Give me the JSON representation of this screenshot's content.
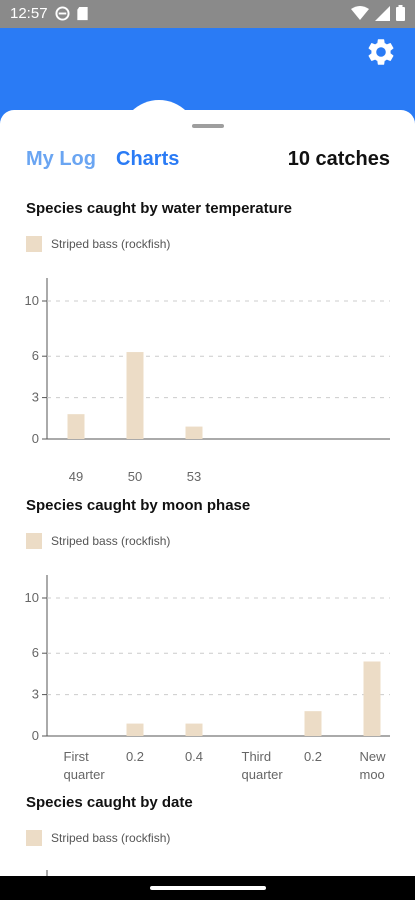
{
  "status": {
    "time": "12:57",
    "icons": [
      "vpn-icon",
      "sd-card-icon",
      "wifi-icon",
      "signal-icon",
      "battery-icon"
    ]
  },
  "header": {
    "settings_icon": "gear-icon",
    "background": "#2a7bf5"
  },
  "tabs": [
    {
      "label": "My Log",
      "active": false
    },
    {
      "label": "Charts",
      "active": true
    }
  ],
  "catch_count": "10 catches",
  "charts": [
    {
      "title": "Species caught by water temperature",
      "legend": "Striped bass (rockfish)",
      "chart_data": {
        "type": "bar",
        "categories": [
          "49",
          "50",
          "53"
        ],
        "series": [
          {
            "name": "Striped bass (rockfish)",
            "values": [
              1.8,
              6.3,
              0.9
            ]
          }
        ],
        "yticks": [
          "0",
          "3",
          "6",
          "10"
        ],
        "color": "#ecdcc6"
      }
    },
    {
      "title": "Species caught by moon phase",
      "legend": "Striped bass (rockfish)",
      "chart_data": {
        "type": "bar",
        "categories": [
          "First quarter",
          "0.2",
          "0.4",
          "Third quarter",
          "0.2",
          "New moo"
        ],
        "series": [
          {
            "name": "Striped bass (rockfish)",
            "values": [
              0,
              0.9,
              0.9,
              0,
              1.8,
              5.4
            ]
          }
        ],
        "yticks": [
          "0",
          "3",
          "6",
          "10"
        ],
        "color": "#ecdcc6"
      }
    },
    {
      "title": "Species caught by date",
      "legend": "Striped bass (rockfish)"
    }
  ]
}
